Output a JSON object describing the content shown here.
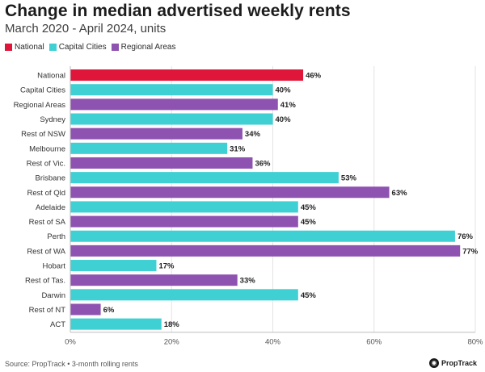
{
  "title": "Change in median advertised weekly rents",
  "subtitle": "March 2020 - April 2024, units",
  "legend": [
    {
      "label": "National",
      "color": "#e0153a"
    },
    {
      "label": "Capital Cities",
      "color": "#3fd0d4"
    },
    {
      "label": "Regional Areas",
      "color": "#8e52b0"
    }
  ],
  "footer": {
    "source": "Source: PropTrack • 3-month rolling rents",
    "brand": "PropTrack",
    "brand_icon": "proptrack-logo-icon"
  },
  "chart_data": {
    "type": "bar",
    "orientation": "horizontal",
    "title": "Change in median advertised weekly rents",
    "subtitle": "March 2020 - April 2024, units",
    "xlim": [
      0,
      80
    ],
    "x_ticks": [
      0,
      20,
      40,
      60,
      80
    ],
    "x_tick_labels": [
      "0%",
      "20%",
      "40%",
      "60%",
      "80%"
    ],
    "grid": true,
    "legend_position": "top-left",
    "categories": [
      "National",
      "Capital Cities",
      "Regional Areas",
      "Sydney",
      "Rest of NSW",
      "Melbourne",
      "Rest of Vic.",
      "Brisbane",
      "Rest of Qld",
      "Adelaide",
      "Rest of SA",
      "Perth",
      "Rest of WA",
      "Hobart",
      "Rest of Tas.",
      "Darwin",
      "Rest of NT",
      "ACT"
    ],
    "values": [
      46,
      40,
      41,
      40,
      34,
      31,
      36,
      53,
      63,
      45,
      45,
      76,
      77,
      17,
      33,
      45,
      6,
      18
    ],
    "value_labels": [
      "46%",
      "40%",
      "41%",
      "40%",
      "34%",
      "31%",
      "36%",
      "53%",
      "63%",
      "45%",
      "45%",
      "76%",
      "77%",
      "17%",
      "33%",
      "45%",
      "6%",
      "18%"
    ],
    "groups": [
      "National",
      "Capital Cities",
      "Regional Areas",
      "Capital Cities",
      "Regional Areas",
      "Capital Cities",
      "Regional Areas",
      "Capital Cities",
      "Regional Areas",
      "Capital Cities",
      "Regional Areas",
      "Capital Cities",
      "Regional Areas",
      "Capital Cities",
      "Regional Areas",
      "Capital Cities",
      "Regional Areas",
      "Capital Cities"
    ]
  }
}
